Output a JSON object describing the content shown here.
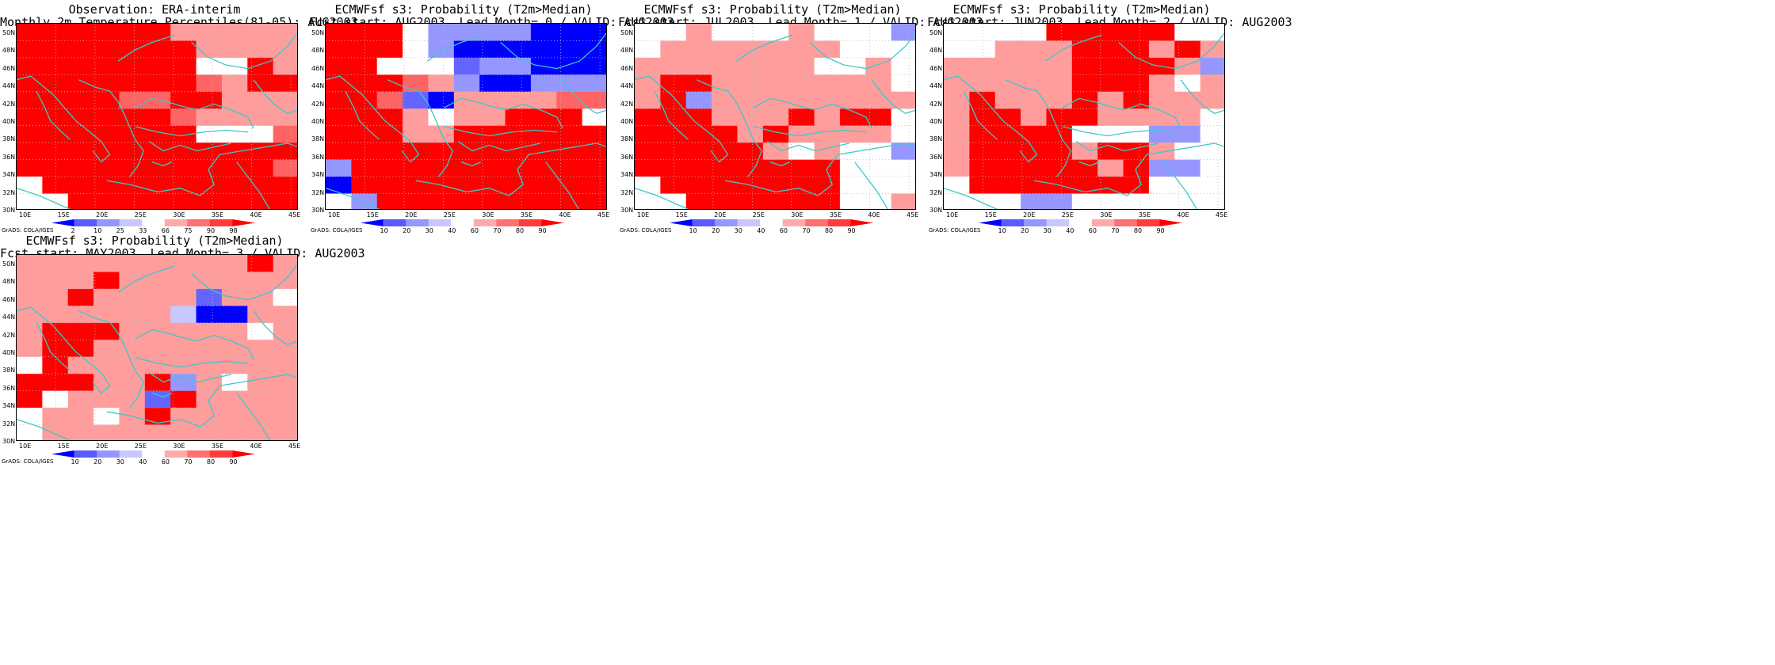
{
  "panels": [
    {
      "title": [
        "Observation: ERA-interim",
        "Monthly 2m Temperature Percentiles(81-05): AUG2003"
      ],
      "colorbar": {
        "labels": [
          "2",
          "10",
          "25",
          "33",
          "66",
          "75",
          "90",
          "98"
        ],
        "colors": [
          "#0000ff",
          "#5a5aff",
          "#9696ff",
          "#c8c8ff",
          "#ffffff",
          "#ffaaaa",
          "#ff7070",
          "#ff3c3c",
          "#ff0000"
        ]
      },
      "grid": [
        "99999977777",
        "99999997777",
        "99999990097",
        "99999998799",
        "99998899777",
        "99999987777",
        "99999990008",
        "99999999999",
        "99999999998",
        "09999999999",
        "00999999999"
      ]
    },
    {
      "title": [
        "ECMWFsf s3: Probability (T2m>Median)",
        "Fcst start: AUG2003  Lead Month= 0 / VALID: AUG2003"
      ],
      "colorbar": {
        "labels": [
          "10",
          "20",
          "30",
          "40",
          "60",
          "70",
          "80",
          "90"
        ],
        "colors": [
          "#0000ff",
          "#5a5aff",
          "#9696ff",
          "#c8c8ff",
          "#ffffff",
          "#ffaaaa",
          "#ff7070",
          "#ff3c3c",
          "#ff0000"
        ]
      },
      "grid": [
        "99902222111",
        "99902111111",
        "99000322111",
        "99987211222",
        "99831777788",
        "99970779990",
        "99977999999",
        "99999999999",
        "29999999999",
        "19999999999",
        "02999999999"
      ]
    },
    {
      "title": [
        "ECMWFsf s3: Probability (T2m>Median)",
        "Fcst start: JUL2003  Lead Month= 1 / VALID: AUG2003"
      ],
      "colorbar": {
        "labels": [
          "10",
          "20",
          "30",
          "40",
          "60",
          "70",
          "80",
          "90"
        ],
        "colors": [
          "#0000ff",
          "#5a5aff",
          "#9696ff",
          "#c8c8ff",
          "#ffffff",
          "#ffaaaa",
          "#ff7070",
          "#ff3c3c",
          "#ff0000"
        ]
      },
      "grid": [
        "00700070002",
        "07777777000",
        "77777770070",
        "79977777770",
        "79277777777",
        "99977797990",
        "99997977770",
        "99999707002",
        "99999999000",
        "09999999000",
        "00999999007"
      ]
    },
    {
      "title": [
        "ECMWFsf s3: Probability (T2m>Median)",
        "Fcst start: JUN2003  Lead Month= 2 / VALID: AUG2003"
      ],
      "colorbar": {
        "labels": [
          "10",
          "20",
          "30",
          "40",
          "60",
          "70",
          "80",
          "90"
        ],
        "colors": [
          "#0000ff",
          "#5a5aff",
          "#9696ff",
          "#c8c8ff",
          "#ffffff",
          "#ffaaaa",
          "#ff7070",
          "#ff3c3c",
          "#ff0000"
        ]
      },
      "grid": [
        "00009999900",
        "00777999797",
        "77777999972",
        "77777999707",
        "79777979777",
        "79979977770",
        "79999000220",
        "79999799700",
        "79999979220",
        "09999999000",
        "00022000000"
      ]
    },
    {
      "title": [
        "ECMWFsf s3: Probability (T2m>Median)",
        "Fcst start: MAY2003  Lead Month= 3 / VALID: AUG2003"
      ],
      "colorbar": {
        "labels": [
          "10",
          "20",
          "30",
          "40",
          "60",
          "70",
          "80",
          "90"
        ],
        "colors": [
          "#0000ff",
          "#5a5aff",
          "#9696ff",
          "#c8c8ff",
          "#ffffff",
          "#ffaaaa",
          "#ff7070",
          "#ff3c3c",
          "#ff0000"
        ]
      },
      "grid": [
        "77777777797",
        "77797777777",
        "77977773770",
        "77777761177",
        "79997777707",
        "79977777777",
        "09777777777",
        "99977927077",
        "90777397777",
        "07707977777",
        "07777777777"
      ]
    }
  ],
  "axes": {
    "lat_labels": [
      "50N",
      "48N",
      "46N",
      "44N",
      "42N",
      "40N",
      "38N",
      "36N",
      "34N",
      "32N",
      "30N"
    ],
    "lon_labels": [
      "10E",
      "15E",
      "20E",
      "25E",
      "30E",
      "35E",
      "40E",
      "45E"
    ]
  },
  "credit": "GrADS: COLA/IGES",
  "colors": {
    "coast": "#3cc8c8",
    "grid_dot": "#bbbbbb",
    "frame": "#000000"
  }
}
